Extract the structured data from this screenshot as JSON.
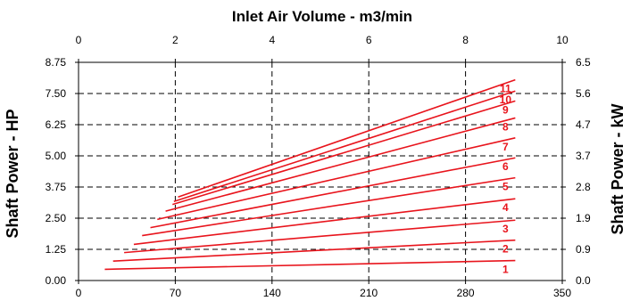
{
  "chart_data": {
    "type": "line",
    "title": "Inlet Air Volume - m3/min",
    "x_bottom": {
      "label": "",
      "range": [
        0,
        350
      ],
      "ticks": [
        "0",
        "70",
        "140",
        "210",
        "280",
        "350"
      ]
    },
    "x_top": {
      "label": "Inlet Air Volume - m3/min",
      "range": [
        0,
        10
      ],
      "ticks": [
        "0",
        "2",
        "4",
        "6",
        "8",
        "10"
      ]
    },
    "y_left": {
      "label": "Shaft Power - HP",
      "range": [
        0,
        8.75
      ],
      "ticks": [
        "0.00",
        "1.25",
        "2.50",
        "3.75",
        "5.00",
        "6.25",
        "7.50",
        "8.75"
      ]
    },
    "y_right": {
      "label": "Shaft Power - kW",
      "range": [
        0,
        6.5
      ],
      "ticks": [
        "0.0",
        "0.9",
        "1.9",
        "2.8",
        "3.7",
        "4.7",
        "5.6",
        "6.5"
      ]
    },
    "grid": {
      "dashed": true,
      "vertical": [
        70,
        140,
        210,
        280
      ],
      "horizontal": [
        1.25,
        2.5,
        3.75,
        5.0,
        6.25,
        7.5
      ]
    },
    "line_color": "#e8141c",
    "series": [
      {
        "name": "1",
        "x": [
          19,
          316
        ],
        "y": [
          0.45,
          0.8
        ]
      },
      {
        "name": "2",
        "x": [
          25,
          316
        ],
        "y": [
          0.78,
          1.62
        ]
      },
      {
        "name": "3",
        "x": [
          33,
          316
        ],
        "y": [
          1.12,
          2.42
        ]
      },
      {
        "name": "4",
        "x": [
          40,
          316
        ],
        "y": [
          1.45,
          3.28
        ]
      },
      {
        "name": "5",
        "x": [
          46,
          316
        ],
        "y": [
          1.8,
          4.12
        ]
      },
      {
        "name": "6",
        "x": [
          52,
          316
        ],
        "y": [
          2.12,
          4.92
        ]
      },
      {
        "name": "7",
        "x": [
          57,
          316
        ],
        "y": [
          2.45,
          5.72
        ]
      },
      {
        "name": "8",
        "x": [
          63,
          316
        ],
        "y": [
          2.78,
          6.52
        ]
      },
      {
        "name": "9",
        "x": [
          68,
          316
        ],
        "y": [
          3.05,
          7.2
        ]
      },
      {
        "name": "10",
        "x": [
          69,
          316
        ],
        "y": [
          3.17,
          7.6
        ]
      },
      {
        "name": "11",
        "x": [
          72,
          316
        ],
        "y": [
          3.35,
          8.05
        ]
      }
    ]
  }
}
